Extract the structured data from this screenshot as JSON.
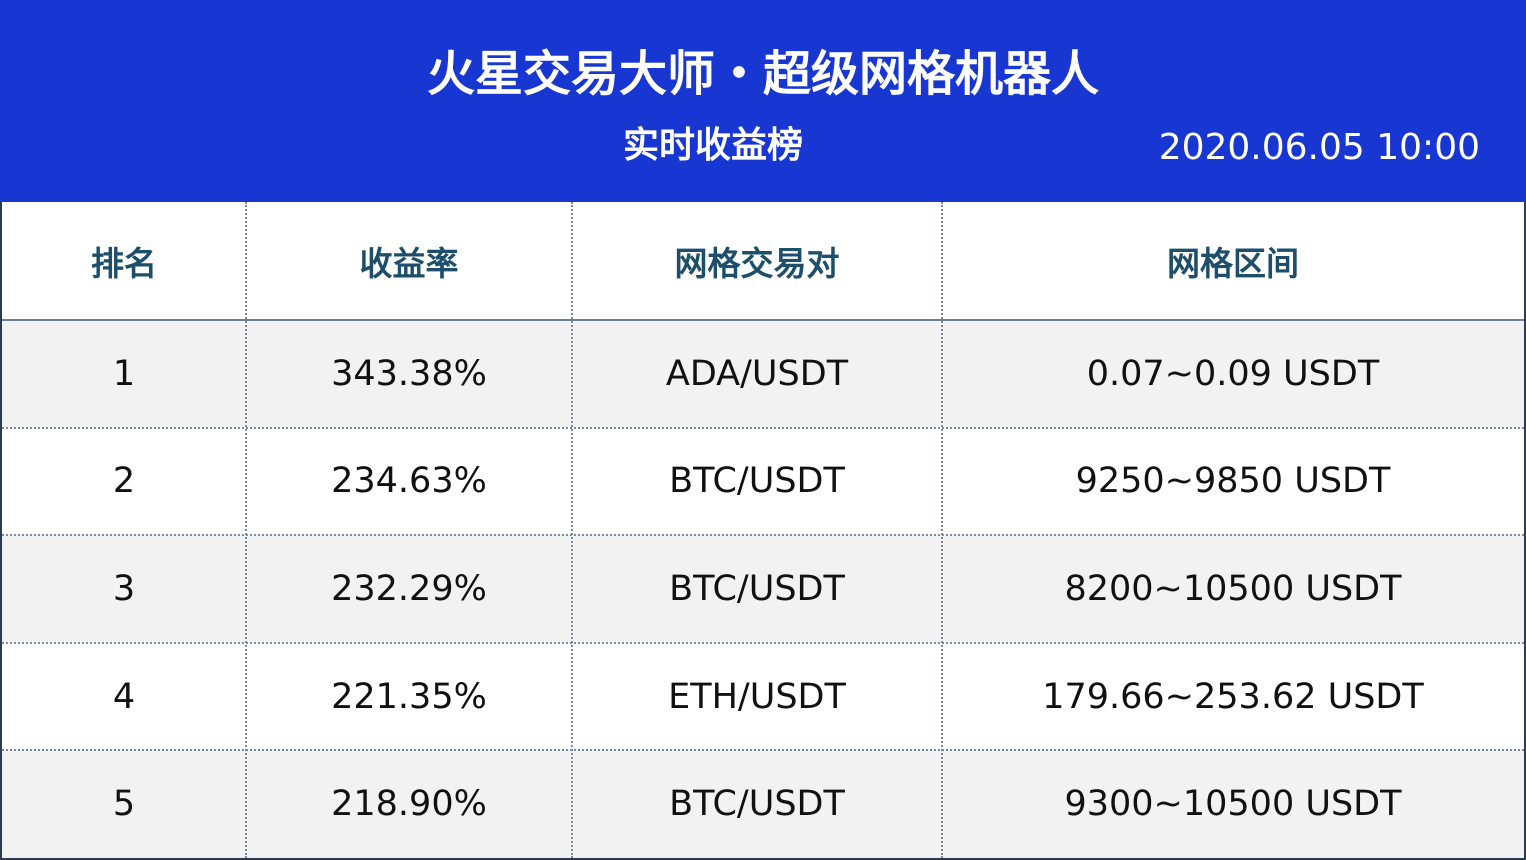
{
  "header": {
    "title": "火星交易大师・超级网格机器人",
    "subtitle": "实时收益榜",
    "timestamp": "2020.06.05 10:00"
  },
  "table": {
    "columns": [
      "排名",
      "收益率",
      "网格交易对",
      "网格区间"
    ],
    "rows": [
      [
        "1",
        "343.38%",
        "ADA/USDT",
        "0.07~0.09 USDT"
      ],
      [
        "2",
        "234.63%",
        "BTC/USDT",
        "9250~9850 USDT"
      ],
      [
        "3",
        "232.29%",
        "BTC/USDT",
        "8200~10500 USDT"
      ],
      [
        "4",
        "221.35%",
        "ETH/USDT",
        "179.66~253.62 USDT"
      ],
      [
        "5",
        "218.90%",
        "BTC/USDT",
        "9300~10500 USDT"
      ]
    ]
  }
}
